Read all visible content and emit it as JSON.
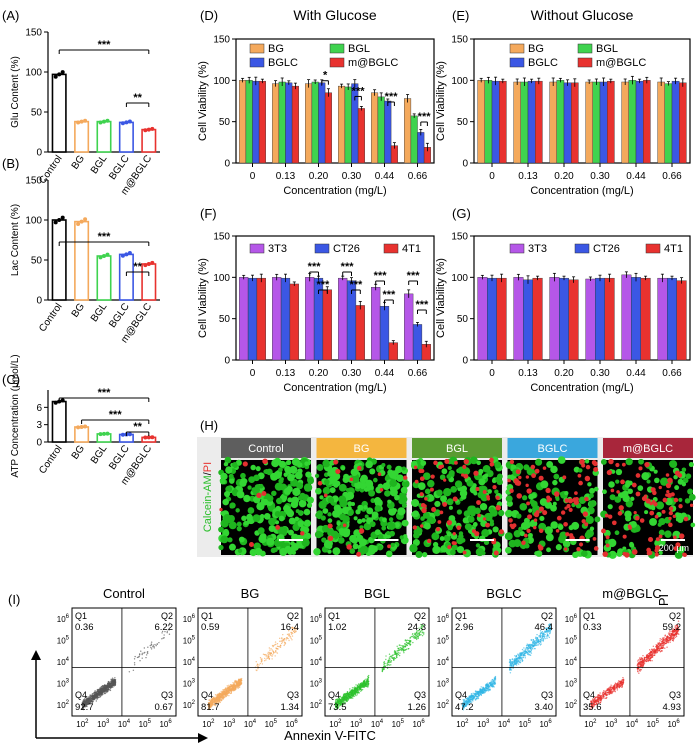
{
  "colors": {
    "control": "#000000",
    "bg": "#f4a95c",
    "bgl": "#3fd34f",
    "bglc": "#3b57e4",
    "mbglc": "#e8322f",
    "t3t3": "#b557e8",
    "ct26": "#3b57e4",
    "t4t1": "#e8322f",
    "green": "#2cbf2c",
    "axis": "#000000"
  },
  "chart_data": [
    {
      "panel": "(A)",
      "type": "bar",
      "ylabel": "Glu Content (%)",
      "categories": [
        "Control",
        "BG",
        "BGL",
        "BGLC",
        "m@BGLC"
      ],
      "values": [
        97,
        38,
        38,
        37,
        28
      ],
      "ylim": [
        0,
        150
      ],
      "yticks": [
        0,
        50,
        100,
        150
      ],
      "signif": [
        {
          "label": "***"
        },
        {
          "label": "**"
        }
      ]
    },
    {
      "panel": "(B)",
      "type": "bar",
      "ylabel": "Lac Content (%)",
      "categories": [
        "Control",
        "BG",
        "BGL",
        "BGLC",
        "m@BGLC"
      ],
      "values": [
        100,
        98,
        55,
        57,
        45
      ],
      "ylim": [
        0,
        150
      ],
      "yticks": [
        0,
        50,
        100,
        150
      ],
      "signif": [
        {
          "label": "***"
        },
        {
          "label": "**"
        }
      ]
    },
    {
      "panel": "(C)",
      "type": "bar",
      "ylabel": "ATP Concentration (µmol/L)",
      "categories": [
        "Control",
        "BG",
        "BGL",
        "BGLC",
        "m@BGLC"
      ],
      "values": [
        7.0,
        2.6,
        1.4,
        1.3,
        0.8
      ],
      "ylim": [
        0,
        9
      ],
      "yticks": [
        0,
        3,
        6
      ],
      "signif": [
        {
          "label": "***"
        },
        {
          "label": "***"
        },
        {
          "label": "**"
        }
      ]
    },
    {
      "panel": "(D)",
      "type": "bar",
      "title": "With Glucose",
      "xlabel": "Concentration (mg/L)",
      "ylabel": "Cell Viability (%)",
      "categories": [
        "0",
        "0.13",
        "0.20",
        "0.30",
        "0.44",
        "0.66"
      ],
      "ylim": [
        0,
        150
      ],
      "yticks": [
        0,
        50,
        100,
        150
      ],
      "series": [
        {
          "name": "BG",
          "values": [
            100,
            96,
            96,
            93,
            85,
            78
          ]
        },
        {
          "name": "BGL",
          "values": [
            100,
            98,
            98,
            92,
            80,
            57
          ]
        },
        {
          "name": "BGLC",
          "values": [
            99,
            97,
            97,
            96,
            75,
            37
          ]
        },
        {
          "name": "m@BGLC",
          "values": [
            99,
            93,
            85,
            66,
            21,
            19
          ]
        }
      ],
      "signif": [
        "*",
        "***",
        "***",
        "***"
      ]
    },
    {
      "panel": "(E)",
      "type": "bar",
      "title": "Without Glucose",
      "xlabel": "Concentration (mg/L)",
      "ylabel": "Cell Viability (%)",
      "categories": [
        "0",
        "0.13",
        "0.20",
        "0.30",
        "0.44",
        "0.66"
      ],
      "ylim": [
        0,
        150
      ],
      "yticks": [
        0,
        50,
        100,
        150
      ],
      "series": [
        {
          "name": "BG",
          "values": [
            100,
            98,
            98,
            98,
            98,
            98
          ]
        },
        {
          "name": "BGL",
          "values": [
            100,
            98,
            100,
            98,
            100,
            96
          ]
        },
        {
          "name": "BGLC",
          "values": [
            99,
            99,
            97,
            98,
            99,
            99
          ]
        },
        {
          "name": "m@BGLC",
          "values": [
            99,
            99,
            97,
            99,
            100,
            97
          ]
        }
      ]
    },
    {
      "panel": "(F)",
      "type": "bar",
      "xlabel": "Concentration (mg/L)",
      "ylabel": "Cell Viability (%)",
      "categories": [
        "0",
        "0.13",
        "0.20",
        "0.30",
        "0.44",
        "0.66"
      ],
      "ylim": [
        0,
        150
      ],
      "yticks": [
        0,
        50,
        100,
        150
      ],
      "series": [
        {
          "name": "3T3",
          "values": [
            100,
            100,
            100,
            99,
            88,
            80
          ]
        },
        {
          "name": "CT26",
          "values": [
            99,
            99,
            99,
            96,
            65,
            43
          ]
        },
        {
          "name": "4T1",
          "values": [
            99,
            92,
            85,
            66,
            21,
            19
          ]
        }
      ],
      "signif": [
        "***",
        "***",
        "***",
        "***",
        "***",
        "***",
        "***",
        "***"
      ]
    },
    {
      "panel": "(G)",
      "type": "bar",
      "xlabel": "Concentration (mg/L)",
      "ylabel": "Cell Viability (%)",
      "categories": [
        "0",
        "0.13",
        "0.20",
        "0.30",
        "0.44",
        "0.66"
      ],
      "ylim": [
        0,
        150
      ],
      "yticks": [
        0,
        50,
        100,
        150
      ],
      "series": [
        {
          "name": "3T3",
          "values": [
            100,
            100,
            100,
            98,
            103,
            99
          ]
        },
        {
          "name": "CT26",
          "values": [
            99,
            97,
            99,
            99,
            100,
            99
          ]
        },
        {
          "name": "4T1",
          "values": [
            99,
            99,
            97,
            99,
            99,
            96
          ]
        }
      ]
    }
  ],
  "panel_h": {
    "label": "(H)",
    "headers": [
      "Control",
      "BG",
      "BGL",
      "BGLC",
      "m@BGLC"
    ],
    "header_colors": [
      "#5e5e5e",
      "#f4b63f",
      "#5a9a32",
      "#3aa7dd",
      "#a8263b"
    ],
    "ylabel_green": "Calcein-AM",
    "ylabel_slash": "/",
    "ylabel_red": "PI",
    "scale": "200 µm",
    "red_density": [
      0.02,
      0.05,
      0.25,
      0.55,
      0.55
    ]
  },
  "panel_i": {
    "label": "(I)",
    "xlabel": "Annexin V-FITC",
    "ylabel": "PI",
    "plots": [
      {
        "title": "Control",
        "color": "#555555",
        "q1": "0.36",
        "q2": "6.22",
        "q3": "0.67",
        "q4": "92.7"
      },
      {
        "title": "BG",
        "color": "#f4a95c",
        "q1": "0.59",
        "q2": "16.4",
        "q3": "1.34",
        "q4": "81.7"
      },
      {
        "title": "BGL",
        "color": "#2cc22c",
        "q1": "1.02",
        "q2": "24.3",
        "q3": "1.26",
        "q4": "73.5"
      },
      {
        "title": "BGLC",
        "color": "#33b6e6",
        "q1": "2.96",
        "q2": "46.4",
        "q3": "3.40",
        "q4": "47.2"
      },
      {
        "title": "m@BGLC",
        "color": "#e8322f",
        "q1": "0.33",
        "q2": "59.2",
        "q3": "4.93",
        "q4": "35.6"
      }
    ],
    "quad_labels": [
      "Q1",
      "Q2",
      "Q3",
      "Q4"
    ],
    "tick_base": "10",
    "tick_exps": [
      "2",
      "3",
      "4",
      "5",
      "6"
    ]
  }
}
